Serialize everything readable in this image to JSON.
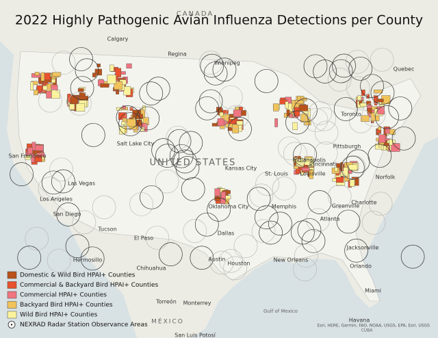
{
  "title": "2022 Highly Pathogenic Avian Influenza Detections per County",
  "legend": {
    "items": [
      {
        "label": "Domestic & Wild Bird HPAI+ Counties",
        "color": "#b9531c"
      },
      {
        "label": "Commercial & Backyard Bird HPAI+ Counties",
        "color": "#e8522e"
      },
      {
        "label": "Commercial HPAI+ Counties",
        "color": "#ef7580"
      },
      {
        "label": "Backyard Bird HPAI+ Counties",
        "color": "#f1c35a"
      },
      {
        "label": "Wild Bird HPAI+ Counties",
        "color": "#fbf39c"
      }
    ],
    "radar": "NEXRAD Radar Station Observance Areas"
  },
  "places": [
    "CANADA",
    "Calgary",
    "Regina",
    "Winnipeg",
    "Quebec",
    "Toronto",
    "Salt Lake City",
    "San Francisco",
    "Las Vegas",
    "Los Angeles",
    "San Diego",
    "Tucson",
    "El Paso",
    "Hermosillo",
    "Chihuahua",
    "Torreón",
    "Monterrey",
    "Dallas",
    "Austin",
    "Houston",
    "New Orleans",
    "Memphis",
    "Oklahoma City",
    "Kansas City",
    "St. Louis",
    "Indianapolis",
    "Cincinnati",
    "Louisville",
    "Atlanta",
    "Greenville",
    "Charlotte",
    "Jacksonville",
    "Orlando",
    "Miami",
    "Havana",
    "Norfolk",
    "Pittsburgh",
    "UNITED STATES",
    "MÉXICO",
    "Gulf of Mexico",
    "CUBA",
    "San Luis Potosí"
  ],
  "attribution": "Esri, HERE, Garmin, FAO, NOAA, USGS, EPA, Esri, USGS"
}
